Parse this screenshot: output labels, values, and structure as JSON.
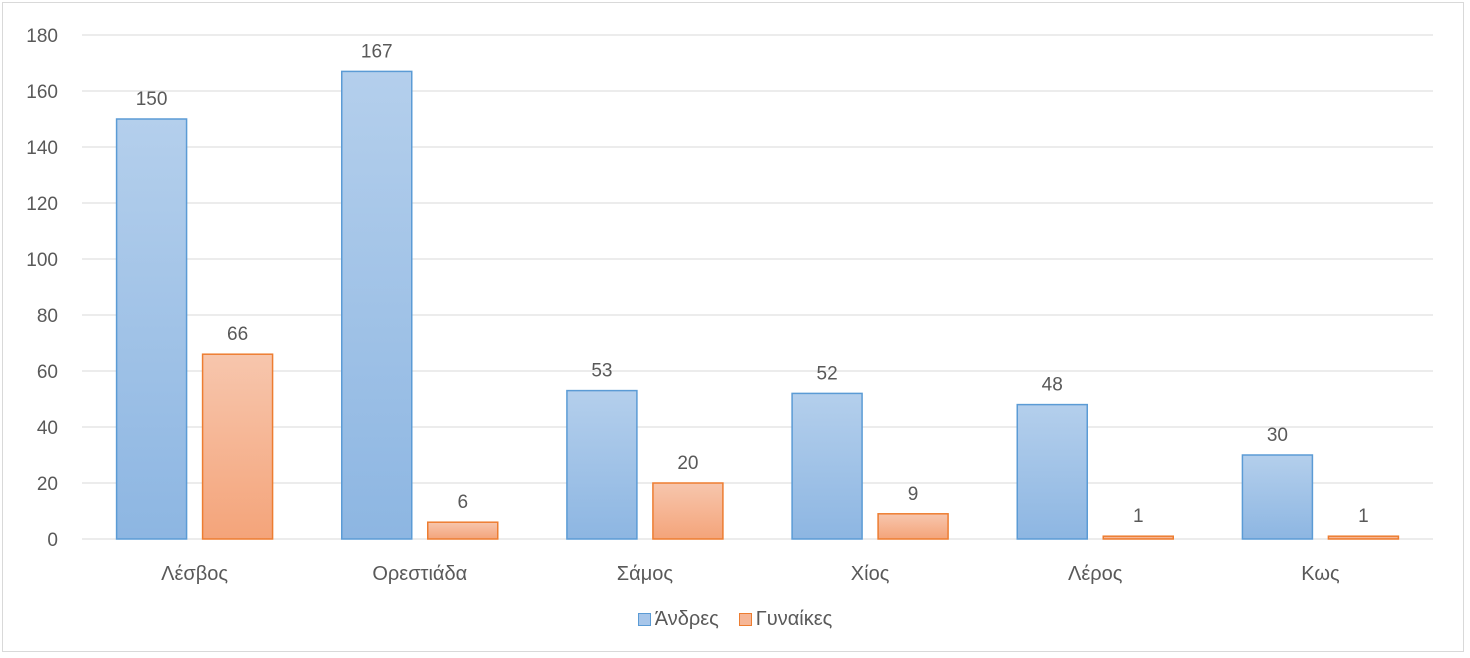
{
  "chart_data": {
    "type": "bar",
    "title": "",
    "xlabel": "",
    "ylabel": "",
    "categories": [
      "Λέσβος",
      "Ορεστιάδα",
      "Σάμος",
      "Χίος",
      "Λέρος",
      "Κως"
    ],
    "series": [
      {
        "name": "Άνδρες",
        "values": [
          150,
          167,
          53,
          52,
          48,
          30
        ],
        "color": "#9dc3e6",
        "border": "#5b9bd5"
      },
      {
        "name": "Γυναίκες",
        "values": [
          66,
          6,
          20,
          9,
          1,
          1
        ],
        "color": "#f8b98e",
        "border": "#ed7d31"
      }
    ],
    "yticks": [
      0,
      20,
      40,
      60,
      80,
      100,
      120,
      140,
      160,
      180
    ],
    "ylim": [
      0,
      180
    ],
    "grid": true,
    "legend_position": "bottom"
  }
}
